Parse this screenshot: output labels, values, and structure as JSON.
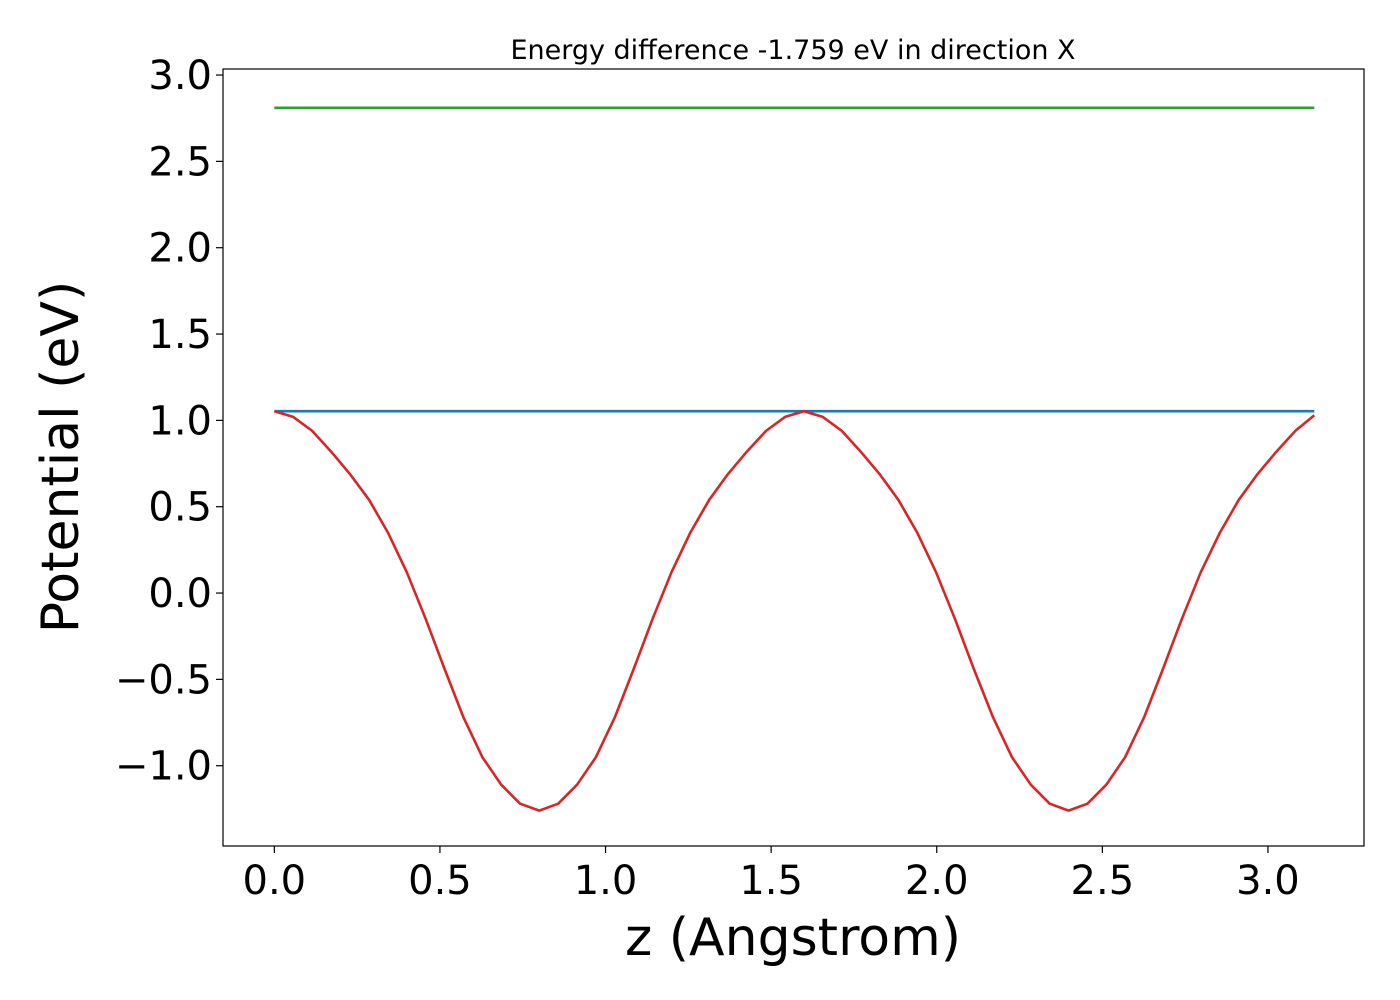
{
  "chart_data": {
    "type": "line",
    "title": "Energy difference -1.759 eV in direction X",
    "xlabel": "z (Angstrom)",
    "ylabel": "Potential (eV)",
    "xlim": [
      -0.155,
      3.29
    ],
    "ylim": [
      -1.465,
      3.035
    ],
    "xticks": [
      0.0,
      0.5,
      1.0,
      1.5,
      2.0,
      2.5,
      3.0
    ],
    "xtick_labels": [
      "0.0",
      "0.5",
      "1.0",
      "1.5",
      "2.0",
      "2.5",
      "3.0"
    ],
    "yticks": [
      -1.0,
      -0.5,
      0.0,
      0.5,
      1.0,
      1.5,
      2.0,
      2.5,
      3.0
    ],
    "ytick_labels": [
      "−1.0",
      "−0.5",
      "0.0",
      "0.5",
      "1.0",
      "1.5",
      "2.0",
      "2.5",
      "3.0"
    ],
    "grid": false,
    "legend": false,
    "series": [
      {
        "color": "#2ca02c",
        "x": [
          0.0,
          3.14
        ],
        "y": [
          2.81,
          2.81
        ]
      },
      {
        "color": "#1f77b4",
        "x": [
          0.0,
          3.14
        ],
        "y": [
          1.053,
          1.053
        ]
      },
      {
        "color": "#d62728",
        "x": [
          0.0,
          0.057,
          0.114,
          0.171,
          0.228,
          0.286,
          0.343,
          0.4,
          0.457,
          0.514,
          0.571,
          0.628,
          0.685,
          0.742,
          0.8,
          0.857,
          0.914,
          0.971,
          1.028,
          1.085,
          1.142,
          1.199,
          1.256,
          1.313,
          1.37,
          1.427,
          1.485,
          1.542,
          1.599,
          1.656,
          1.713,
          1.77,
          1.827,
          1.884,
          1.941,
          1.998,
          2.055,
          2.112,
          2.17,
          2.227,
          2.284,
          2.341,
          2.398,
          2.455,
          2.512,
          2.569,
          2.626,
          2.683,
          2.74,
          2.797,
          2.855,
          2.912,
          2.969,
          3.026,
          3.083,
          3.14
        ],
        "y": [
          1.053,
          1.02,
          0.94,
          0.82,
          0.69,
          0.54,
          0.35,
          0.12,
          -0.15,
          -0.44,
          -0.72,
          -0.95,
          -1.11,
          -1.22,
          -1.26,
          -1.22,
          -1.11,
          -0.95,
          -0.72,
          -0.44,
          -0.15,
          0.12,
          0.35,
          0.54,
          0.69,
          0.82,
          0.94,
          1.02,
          1.053,
          1.02,
          0.94,
          0.82,
          0.69,
          0.54,
          0.35,
          0.12,
          -0.15,
          -0.44,
          -0.72,
          -0.95,
          -1.11,
          -1.22,
          -1.26,
          -1.22,
          -1.11,
          -0.95,
          -0.72,
          -0.44,
          -0.15,
          0.12,
          0.35,
          0.54,
          0.69,
          0.82,
          0.94,
          1.03
        ]
      }
    ]
  }
}
